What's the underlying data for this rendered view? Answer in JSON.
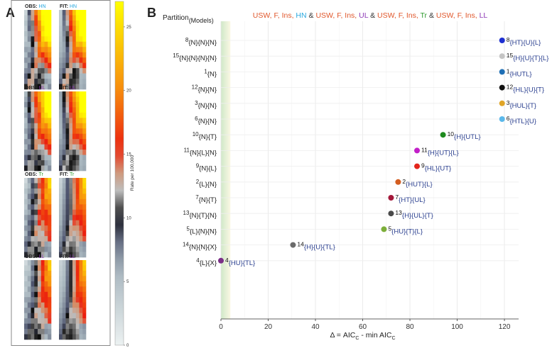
{
  "panel_a": {
    "letter": "A",
    "colorbar": {
      "label": "Rate per 100,000",
      "ticks": [
        "0",
        "5",
        "10",
        "15",
        "20",
        "25"
      ],
      "range": [
        0,
        27
      ]
    },
    "heatmap_rows": [
      {
        "obs_prefix": "OBS: ",
        "fit_prefix": "FIT: ",
        "code": "HN",
        "code_color": "#29a8df"
      },
      {
        "obs_prefix": "OBS: ",
        "fit_prefix": "FIT: ",
        "code": "UL",
        "code_color": "#8e3bb6"
      },
      {
        "obs_prefix": "OBS: ",
        "fit_prefix": "FIT: ",
        "code": "Tr",
        "code_color": "#2e9a2e"
      },
      {
        "obs_prefix": "OBS: ",
        "fit_prefix": "FIT: ",
        "code": "LL",
        "code_color": "#8e3bb6"
      }
    ]
  },
  "panel_b": {
    "letter": "B",
    "colors": {
      "USW": "#e0562a",
      "F": "#e0562a",
      "Ins": "#c0392b",
      "HN": "#29a8df",
      "UL": "#8e3bb6",
      "Tr": "#2e9a2e",
      "LL": "#8e3bb6",
      "amp": "#333333"
    },
    "title_parts": [
      {
        "text": "USW, F, Ins, ",
        "key": "USW"
      },
      {
        "text": "HN",
        "key": "HN"
      },
      {
        "text": " & ",
        "key": "amp"
      },
      {
        "text": "USW, F, Ins, ",
        "key": "USW"
      },
      {
        "text": "UL",
        "key": "UL"
      },
      {
        "text": " & ",
        "key": "amp"
      },
      {
        "text": "USW, F, Ins, ",
        "key": "USW"
      },
      {
        "text": "Tr",
        "key": "Tr"
      },
      {
        "text": " & ",
        "key": "amp"
      },
      {
        "text": "USW, F, Ins, ",
        "key": "USW"
      },
      {
        "text": "LL",
        "key": "LL"
      }
    ]
  },
  "chart_data": {
    "type": "scatter",
    "xlabel_main": "Δ = AIC",
    "xlabel_sub1": "C",
    "xlabel_mid": " - min AIC",
    "xlabel_sub2": "C",
    "ylabel_main": "Partition",
    "ylabel_sub": "(Models)",
    "xlim": [
      0,
      126
    ],
    "xticks": [
      0,
      20,
      40,
      60,
      80,
      100,
      120
    ],
    "shaded_band": [
      0,
      4
    ],
    "points": [
      {
        "id": "8",
        "partition": "{N}{N}{N}",
        "model": "{HT}{U}{L}",
        "delta": 119.0,
        "color": "#1d2fd1"
      },
      {
        "id": "15",
        "partition": "{N}{N}{N}{N}",
        "model": "{H}{U}{T}{L}",
        "delta": 119.0,
        "color": "#c4c4c4"
      },
      {
        "id": "1",
        "partition": "{N}",
        "model": "{HUTL}",
        "delta": 119.0,
        "color": "#1f6fb5"
      },
      {
        "id": "12",
        "partition": "{N}{N}",
        "model": "{HL}{U}{T}",
        "delta": 119.0,
        "color": "#111111"
      },
      {
        "id": "3",
        "partition": "{N}{N}",
        "model": "{HUL}{T}",
        "delta": 119.0,
        "color": "#e0a526"
      },
      {
        "id": "6",
        "partition": "{N}{N}",
        "model": "{HTL}{U}",
        "delta": 119.0,
        "color": "#5bb8ea"
      },
      {
        "id": "10",
        "partition": "{N}{T}",
        "model": "{H}{UTL}",
        "delta": 94.0,
        "color": "#1e8a1e"
      },
      {
        "id": "11",
        "partition": "{N}{L}{N}",
        "model": "{H}{UT}{L}",
        "delta": 83.0,
        "color": "#c21fc8"
      },
      {
        "id": "9",
        "partition": "{N}{L}",
        "model": "{HL}{UT}",
        "delta": 83.0,
        "color": "#e3251b"
      },
      {
        "id": "2",
        "partition": "{L}{N}",
        "model": "{HUT}{L}",
        "delta": 75.0,
        "color": "#d35d20"
      },
      {
        "id": "7",
        "partition": "{N}{T}",
        "model": "{HT}{UL}",
        "delta": 72.0,
        "color": "#a3183a"
      },
      {
        "id": "13",
        "partition": "{N}{T}{N}",
        "model": "{H}{UL}{T}",
        "delta": 72.0,
        "color": "#4a4a4a"
      },
      {
        "id": "5",
        "partition": "{L}{N}{N}",
        "model": "{HU}{T}{L}",
        "delta": 69.0,
        "color": "#7cae3a"
      },
      {
        "id": "14",
        "partition": "{N}{N}{X}",
        "model": "{H}{U}{TL}",
        "delta": 30.5,
        "color": "#6b6b6b"
      },
      {
        "id": "4",
        "partition": "{L}{X}",
        "model": "{HU}{TL}",
        "delta": 0.0,
        "color": "#7a2f86"
      }
    ]
  }
}
